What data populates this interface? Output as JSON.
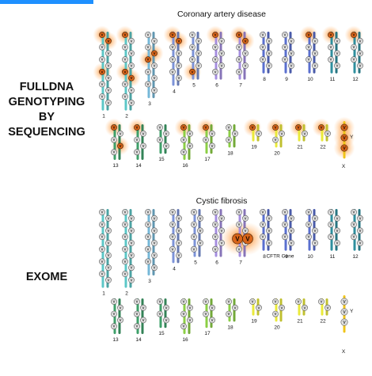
{
  "colors": {
    "accent_bar": "#1e90ff",
    "variant_normal_fill": "#e2e2e2",
    "variant_normal_stroke": "#555555",
    "variant_highlight_fill": "#d9651a",
    "variant_glow": "#ff8a2a"
  },
  "side_labels": {
    "genotyping": "FULLDNA\nGENOTYPING\nBY SEQUENCING",
    "exome": "EXOME"
  },
  "variant_letter": "V",
  "panels": [
    {
      "id": "genotyping",
      "title": "Coronary artery disease",
      "rows": [
        {
          "chromosomes": [
            {
              "label": "1",
              "color": "#5cc7c7",
              "variants": 12,
              "highlighted": [
                0,
                1,
                6
              ]
            },
            {
              "label": "2",
              "color": "#5cc7c7",
              "variants": 12,
              "highlighted": [
                0,
                6,
                7
              ]
            },
            {
              "label": "3",
              "color": "#76b8d8",
              "variants": 10,
              "highlighted": [
                3,
                4
              ]
            },
            {
              "label": "4",
              "color": "#7c93d8",
              "variants": 8,
              "highlighted": [
                0,
                1
              ]
            },
            {
              "label": "5",
              "color": "#7c93d8",
              "variants": 7,
              "highlighted": [
                6
              ]
            },
            {
              "label": "6",
              "color": "#a58ee0",
              "variants": 7,
              "highlighted": [
                0
              ]
            },
            {
              "label": "7",
              "color": "#a58ee0",
              "variants": 7,
              "highlighted": [
                0,
                1
              ]
            },
            {
              "label": "8",
              "color": "#5a6fcf",
              "variants": 6,
              "highlighted": []
            },
            {
              "label": "9",
              "color": "#5a6fcf",
              "variants": 6,
              "highlighted": []
            },
            {
              "label": "10",
              "color": "#5a6fcf",
              "variants": 6,
              "highlighted": [
                0
              ]
            },
            {
              "label": "11",
              "color": "#2f8f9e",
              "variants": 6,
              "highlighted": [
                0
              ]
            },
            {
              "label": "12",
              "color": "#2f8f9e",
              "variants": 6,
              "highlighted": [
                0
              ]
            }
          ]
        },
        {
          "chromosomes": [
            {
              "label": "13",
              "color": "#3ea06a",
              "variants": 5,
              "highlighted": [
                0,
                3
              ]
            },
            {
              "label": "14",
              "color": "#3ea06a",
              "variants": 5,
              "highlighted": [
                0
              ]
            },
            {
              "label": "15",
              "color": "#3ea06a",
              "variants": 4,
              "highlighted": []
            },
            {
              "label": "16",
              "color": "#8ccf45",
              "variants": 5,
              "highlighted": [
                0
              ]
            },
            {
              "label": "17",
              "color": "#8ccf45",
              "variants": 4,
              "highlighted": [
                0
              ]
            },
            {
              "label": "18",
              "color": "#8ccf45",
              "variants": 3,
              "highlighted": []
            },
            {
              "label": "19",
              "color": "#eaea3a",
              "variants": 2,
              "highlighted": [
                0
              ]
            },
            {
              "label": "20",
              "color": "#eaea3a",
              "variants": 3,
              "highlighted": [
                0
              ]
            },
            {
              "label": "21",
              "color": "#eaea3a",
              "variants": 2,
              "highlighted": [
                0
              ]
            },
            {
              "label": "22",
              "color": "#eaea3a",
              "variants": 2,
              "highlighted": [
                0
              ]
            },
            {
              "label": "Y",
              "color": "#f0c419",
              "variants": 3,
              "highlighted": [
                0,
                1,
                2
              ],
              "single": true
            }
          ]
        }
      ],
      "x_label": "X"
    },
    {
      "id": "exome",
      "title": "Cystic fibrosis",
      "gene_label": "CFTR Gene",
      "rows": [
        {
          "chromosomes": [
            {
              "label": "1",
              "color": "#5cc7c7",
              "variants": 12,
              "highlighted": []
            },
            {
              "label": "2",
              "color": "#5cc7c7",
              "variants": 12,
              "highlighted": []
            },
            {
              "label": "3",
              "color": "#76b8d8",
              "variants": 10,
              "highlighted": []
            },
            {
              "label": "4",
              "color": "#7c93d8",
              "variants": 8,
              "highlighted": []
            },
            {
              "label": "5",
              "color": "#7c93d8",
              "variants": 7,
              "highlighted": []
            },
            {
              "label": "6",
              "color": "#a58ee0",
              "variants": 7,
              "highlighted": []
            },
            {
              "label": "7",
              "color": "#a58ee0",
              "variants": 7,
              "highlighted": [],
              "gene_variant": true
            },
            {
              "label": "8",
              "color": "#5a6fcf",
              "variants": 6,
              "highlighted": []
            },
            {
              "label": "9",
              "color": "#5a6fcf",
              "variants": 6,
              "highlighted": []
            },
            {
              "label": "10",
              "color": "#5a6fcf",
              "variants": 6,
              "highlighted": []
            },
            {
              "label": "11",
              "color": "#2f8f9e",
              "variants": 6,
              "highlighted": []
            },
            {
              "label": "12",
              "color": "#2f8f9e",
              "variants": 6,
              "highlighted": []
            }
          ]
        },
        {
          "chromosomes": [
            {
              "label": "13",
              "color": "#3ea06a",
              "variants": 5,
              "highlighted": []
            },
            {
              "label": "14",
              "color": "#3ea06a",
              "variants": 5,
              "highlighted": []
            },
            {
              "label": "15",
              "color": "#3ea06a",
              "variants": 4,
              "highlighted": []
            },
            {
              "label": "16",
              "color": "#8ccf45",
              "variants": 5,
              "highlighted": []
            },
            {
              "label": "17",
              "color": "#8ccf45",
              "variants": 4,
              "highlighted": []
            },
            {
              "label": "18",
              "color": "#8ccf45",
              "variants": 3,
              "highlighted": []
            },
            {
              "label": "19",
              "color": "#eaea3a",
              "variants": 2,
              "highlighted": []
            },
            {
              "label": "20",
              "color": "#eaea3a",
              "variants": 3,
              "highlighted": []
            },
            {
              "label": "21",
              "color": "#eaea3a",
              "variants": 2,
              "highlighted": []
            },
            {
              "label": "22",
              "color": "#eaea3a",
              "variants": 2,
              "highlighted": []
            },
            {
              "label": "Y",
              "color": "#f0c419",
              "variants": 3,
              "highlighted": [],
              "single": true
            }
          ]
        }
      ],
      "x_label": "X"
    }
  ]
}
